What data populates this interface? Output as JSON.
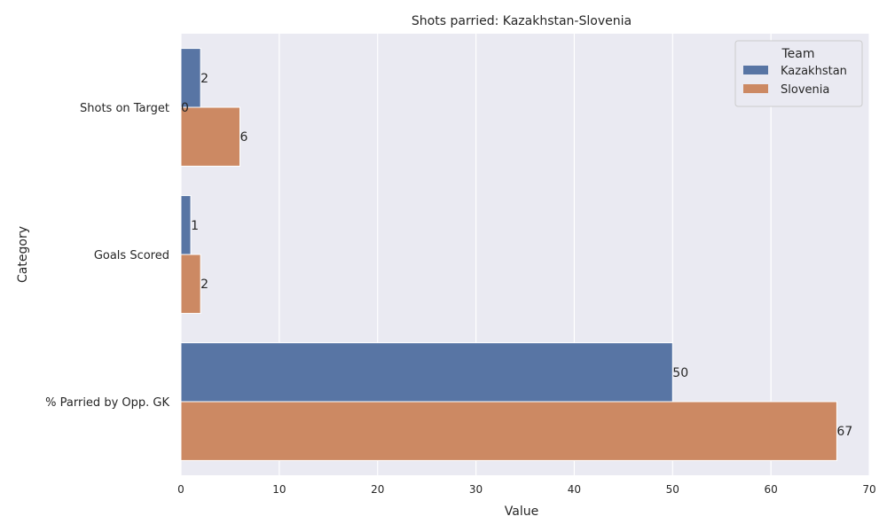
{
  "chart_data": {
    "type": "bar",
    "orientation": "horizontal",
    "title": "Shots parried: Kazakhstan-Slovenia",
    "xlabel": "Value",
    "ylabel": "Category",
    "xlim": [
      0,
      70
    ],
    "xticks": [
      0,
      10,
      20,
      30,
      40,
      50,
      60,
      70
    ],
    "grid": true,
    "legend_position": "top-right",
    "legend_title": "Team",
    "categories": [
      "Shots on Target",
      "Goals Scored",
      "% Parried by Opp. GK"
    ],
    "series": [
      {
        "name": "Kazakhstan",
        "color": "#5875a4",
        "values": [
          2,
          1,
          50
        ],
        "labels": [
          "2",
          "1",
          "50"
        ]
      },
      {
        "name": "Slovenia",
        "color": "#cc8963",
        "values": [
          6,
          2,
          66.7
        ],
        "labels": [
          "6",
          "2",
          "67"
        ]
      }
    ],
    "extra_labels": [
      {
        "category": "Shots on Target",
        "text": "0"
      }
    ]
  }
}
